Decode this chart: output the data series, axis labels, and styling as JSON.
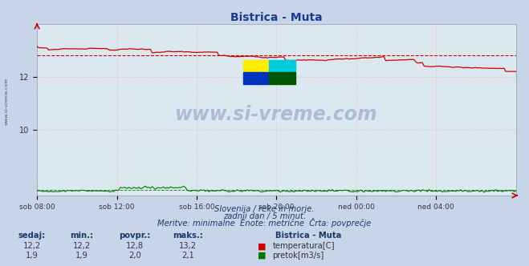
{
  "title": "Bistrica - Muta",
  "bg_color": "#c8d4e8",
  "plot_bg_color": "#dce8f0",
  "grid_color": "#ffaaaa",
  "grid_linestyle": ":",
  "xlabel_ticks": [
    "sob 08:00",
    "sob 12:00",
    "sob 16:00",
    "sob 20:00",
    "ned 00:00",
    "ned 04:00"
  ],
  "ylabel_ticks": [
    10,
    12
  ],
  "ylim": [
    7.5,
    14.0
  ],
  "xlim_max": 287,
  "temp_color": "#cc0000",
  "flow_color": "#007700",
  "flow_avg_color": "#007700",
  "temp_avg_color": "#cc0000",
  "avg_line_style": "--",
  "watermark_text": "www.si-vreme.com",
  "watermark_color": "#1a3a8a",
  "subtitle1": "Slovenija / reke in morje.",
  "subtitle2": "zadnji dan / 5 minut.",
  "subtitle3": "Meritve: minimalne  Enote: metrične  Črta: povprečje",
  "legend_title": "Bistrica - Muta",
  "stat_headers": [
    "sedaj:",
    "min.:",
    "povpr.:",
    "maks.:"
  ],
  "temp_stats": [
    "12,2",
    "12,2",
    "12,8",
    "13,2"
  ],
  "flow_stats": [
    "1,9",
    "1,9",
    "2,0",
    "2,1"
  ],
  "temp_label": "temperatura[C]",
  "flow_label": "pretok[m3/s]",
  "temp_avg": 12.8,
  "flow_avg_scaled": 7.7,
  "n_points": 288,
  "sidebar_text": "www.si-vreme.com",
  "sidebar_color": "#1a3a6a",
  "text_color": "#1a3a6a",
  "stat_val_color": "#333366"
}
